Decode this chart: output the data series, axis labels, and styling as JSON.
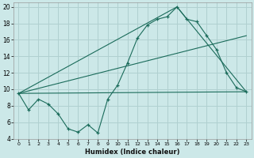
{
  "title": "",
  "xlabel": "Humidex (Indice chaleur)",
  "background_color": "#cce8e8",
  "grid_color": "#b0d0d0",
  "line_color": "#1a6b5a",
  "xlim": [
    -0.5,
    23.5
  ],
  "ylim": [
    4,
    20.5
  ],
  "yticks": [
    4,
    6,
    8,
    10,
    12,
    14,
    16,
    18,
    20
  ],
  "xticks": [
    0,
    1,
    2,
    3,
    4,
    5,
    6,
    7,
    8,
    9,
    10,
    11,
    12,
    13,
    14,
    15,
    16,
    17,
    18,
    19,
    20,
    21,
    22,
    23
  ],
  "series1_x": [
    0,
    1,
    2,
    3,
    4,
    5,
    6,
    7,
    8,
    9,
    10,
    11,
    12,
    13,
    14,
    15,
    16,
    17,
    18,
    19,
    20,
    21,
    22,
    23
  ],
  "series1_y": [
    9.5,
    7.5,
    8.8,
    8.2,
    7.0,
    5.2,
    4.8,
    5.7,
    4.7,
    8.8,
    10.5,
    13.2,
    16.2,
    17.8,
    18.5,
    18.8,
    20.0,
    18.5,
    18.2,
    16.5,
    14.8,
    12.0,
    10.2,
    9.7
  ],
  "line1_x": [
    0,
    23
  ],
  "line1_y": [
    9.5,
    9.7
  ],
  "line2_x": [
    0,
    16,
    23
  ],
  "line2_y": [
    9.5,
    20.0,
    9.7
  ],
  "line3_x": [
    0,
    23
  ],
  "line3_y": [
    9.5,
    16.5
  ]
}
